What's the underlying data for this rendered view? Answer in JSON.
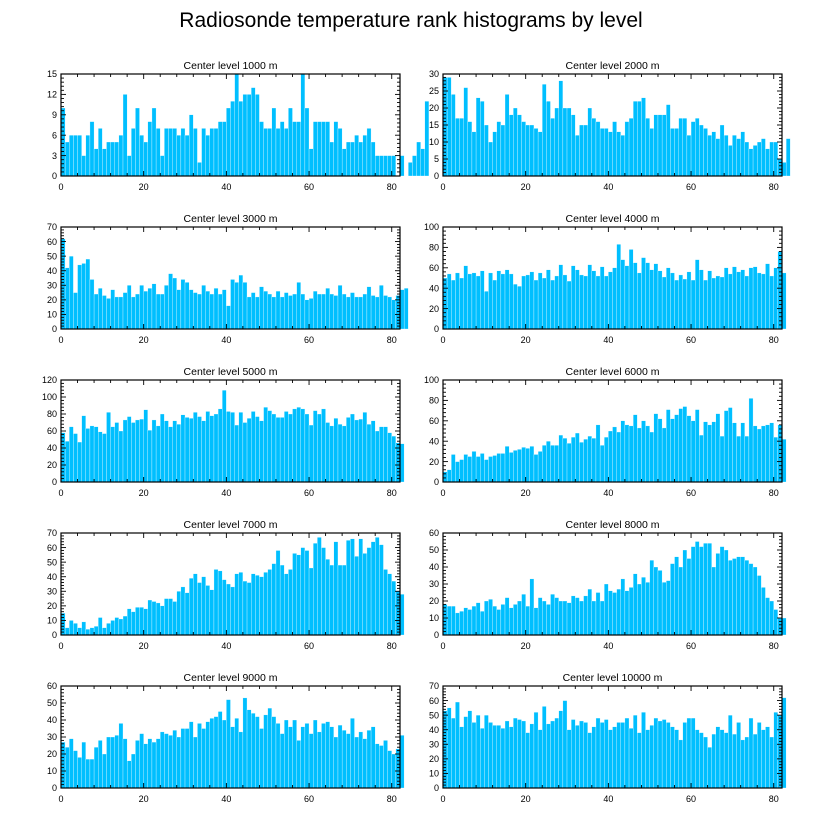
{
  "figure": {
    "title": "Radiosonde temperature rank histograms by level"
  },
  "colors": {
    "bar": "#00bfff",
    "axes": "#000000",
    "background": "#ffffff"
  },
  "chart_data": [
    {
      "type": "bar",
      "title": "Center level 1000 m",
      "xlim": [
        0,
        82
      ],
      "xticks": [
        0,
        20,
        40,
        60,
        80
      ],
      "ylim": [
        0,
        15
      ],
      "yticks": [
        0,
        3,
        6,
        9,
        12,
        15
      ],
      "values": [
        10,
        5,
        6,
        6,
        6,
        3,
        6,
        8,
        4,
        7,
        4,
        5,
        5,
        5,
        6,
        12,
        3,
        7,
        10,
        6,
        5,
        8,
        10,
        7,
        3,
        7,
        7,
        7,
        6,
        7,
        6,
        9,
        7,
        2,
        7,
        6,
        7,
        7,
        8,
        8,
        10,
        11,
        15,
        11,
        12,
        12,
        13,
        12,
        8,
        7,
        7,
        10,
        7,
        8,
        7,
        10,
        8,
        8,
        15,
        10,
        4,
        8,
        8,
        8,
        8,
        5,
        8,
        7,
        4,
        5,
        5,
        6,
        5,
        6,
        7,
        5,
        3,
        3,
        3,
        3,
        3,
        0,
        3,
        0,
        2,
        3,
        5,
        4,
        11
      ]
    },
    {
      "type": "bar",
      "title": "Center level 2000 m",
      "xlim": [
        0,
        82
      ],
      "xticks": [
        0,
        20,
        40,
        60,
        80
      ],
      "ylim": [
        0,
        30
      ],
      "yticks": [
        0,
        5,
        10,
        15,
        20,
        25,
        30
      ],
      "values": [
        29,
        29,
        24,
        17,
        17,
        26,
        16,
        13,
        23,
        22,
        15,
        10,
        13,
        16,
        15,
        24,
        18,
        20,
        18,
        16,
        15,
        15,
        14,
        13,
        27,
        22,
        17,
        20,
        28,
        20,
        20,
        18,
        12,
        15,
        15,
        20,
        17,
        16,
        14,
        14,
        13,
        16,
        13,
        12,
        16,
        17,
        22,
        22,
        23,
        17,
        14,
        18,
        18,
        18,
        21,
        14,
        14,
        17,
        17,
        12,
        16,
        17,
        15,
        14,
        12,
        13,
        11,
        15,
        12,
        9,
        12,
        11,
        13,
        10,
        8,
        9,
        10,
        11,
        8,
        10,
        10,
        5,
        4,
        11
      ]
    },
    {
      "type": "bar",
      "title": "Center level 3000 m",
      "xlim": [
        0,
        82
      ],
      "xticks": [
        0,
        20,
        40,
        60,
        80
      ],
      "ylim": [
        0,
        70
      ],
      "yticks": [
        0,
        10,
        20,
        30,
        40,
        50,
        60,
        70
      ],
      "values": [
        62,
        42,
        50,
        25,
        44,
        45,
        48,
        34,
        24,
        28,
        23,
        21,
        27,
        22,
        22,
        25,
        30,
        22,
        24,
        30,
        26,
        28,
        31,
        24,
        24,
        30,
        38,
        35,
        27,
        34,
        32,
        27,
        25,
        24,
        30,
        26,
        24,
        28,
        24,
        27,
        16,
        34,
        32,
        37,
        32,
        22,
        25,
        22,
        29,
        26,
        24,
        22,
        26,
        22,
        25,
        23,
        24,
        32,
        24,
        20,
        21,
        26,
        24,
        24,
        28,
        24,
        23,
        30,
        24,
        22,
        25,
        22,
        22,
        24,
        29,
        23,
        22,
        30,
        23,
        22,
        20,
        23,
        27,
        28
      ]
    },
    {
      "type": "bar",
      "title": "Center level 4000 m",
      "xlim": [
        0,
        82
      ],
      "xticks": [
        0,
        20,
        40,
        60,
        80
      ],
      "ylim": [
        0,
        100
      ],
      "yticks": [
        0,
        20,
        40,
        60,
        80,
        100
      ],
      "values": [
        50,
        54,
        48,
        55,
        50,
        62,
        54,
        55,
        52,
        57,
        37,
        55,
        48,
        57,
        54,
        58,
        54,
        44,
        42,
        52,
        53,
        56,
        48,
        55,
        50,
        58,
        48,
        52,
        63,
        53,
        47,
        62,
        58,
        53,
        52,
        63,
        57,
        52,
        61,
        52,
        56,
        60,
        83,
        68,
        62,
        78,
        65,
        55,
        70,
        65,
        58,
        64,
        57,
        51,
        60,
        55,
        48,
        53,
        49,
        56,
        48,
        68,
        58,
        48,
        57,
        50,
        52,
        51,
        60,
        54,
        61,
        56,
        58,
        52,
        60,
        61,
        55,
        54,
        64,
        52,
        60,
        76,
        55
      ]
    },
    {
      "type": "bar",
      "title": "Center level 5000 m",
      "xlim": [
        0,
        82
      ],
      "xticks": [
        0,
        20,
        40,
        60,
        80
      ],
      "ylim": [
        0,
        120
      ],
      "yticks": [
        0,
        20,
        40,
        60,
        80,
        100,
        120
      ],
      "values": [
        58,
        48,
        65,
        57,
        47,
        78,
        63,
        66,
        65,
        59,
        57,
        82,
        65,
        70,
        60,
        73,
        77,
        70,
        73,
        74,
        85,
        61,
        73,
        66,
        80,
        72,
        65,
        72,
        68,
        79,
        76,
        75,
        82,
        77,
        72,
        83,
        78,
        80,
        86,
        108,
        83,
        82,
        67,
        82,
        70,
        75,
        83,
        77,
        72,
        88,
        84,
        80,
        76,
        76,
        83,
        80,
        86,
        88,
        86,
        80,
        67,
        84,
        80,
        86,
        70,
        66,
        75,
        68,
        66,
        76,
        80,
        73,
        74,
        82,
        68,
        72,
        60,
        65,
        65,
        58,
        54,
        46,
        45
      ]
    },
    {
      "type": "bar",
      "title": "Center level 6000 m",
      "xlim": [
        0,
        82
      ],
      "xticks": [
        0,
        20,
        40,
        60,
        80
      ],
      "ylim": [
        0,
        100
      ],
      "yticks": [
        0,
        20,
        40,
        60,
        80,
        100
      ],
      "values": [
        10,
        12,
        27,
        20,
        22,
        27,
        25,
        30,
        25,
        28,
        22,
        25,
        26,
        28,
        28,
        35,
        29,
        31,
        32,
        34,
        33,
        35,
        27,
        30,
        36,
        40,
        36,
        36,
        46,
        43,
        38,
        44,
        48,
        39,
        42,
        45,
        43,
        56,
        36,
        44,
        50,
        54,
        49,
        60,
        56,
        55,
        66,
        53,
        60,
        55,
        49,
        67,
        62,
        53,
        71,
        62,
        66,
        72,
        74,
        65,
        60,
        71,
        46,
        59,
        56,
        59,
        67,
        45,
        70,
        73,
        58,
        45,
        58,
        45,
        82,
        55,
        52,
        55,
        56,
        58,
        44,
        56,
        42
      ]
    },
    {
      "type": "bar",
      "title": "Center level 7000 m",
      "xlim": [
        0,
        82
      ],
      "xticks": [
        0,
        20,
        40,
        60,
        80
      ],
      "ylim": [
        0,
        70
      ],
      "yticks": [
        0,
        10,
        20,
        30,
        40,
        50,
        60,
        70
      ],
      "values": [
        15,
        5,
        10,
        8,
        5,
        9,
        4,
        5,
        6,
        12,
        5,
        8,
        10,
        12,
        11,
        13,
        18,
        16,
        19,
        19,
        18,
        24,
        23,
        22,
        20,
        25,
        25,
        23,
        30,
        33,
        29,
        39,
        42,
        36,
        40,
        34,
        31,
        45,
        44,
        38,
        35,
        33,
        42,
        43,
        37,
        36,
        42,
        41,
        40,
        43,
        45,
        49,
        58,
        48,
        42,
        45,
        56,
        55,
        60,
        58,
        46,
        63,
        67,
        60,
        52,
        48,
        64,
        48,
        48,
        65,
        66,
        54,
        66,
        56,
        60,
        64,
        67,
        62,
        45,
        42,
        37,
        30,
        28
      ]
    },
    {
      "type": "bar",
      "title": "Center level 8000 m",
      "xlim": [
        0,
        82
      ],
      "xticks": [
        0,
        20,
        40,
        60,
        80
      ],
      "ylim": [
        0,
        60
      ],
      "yticks": [
        0,
        10,
        20,
        30,
        40,
        50,
        60
      ],
      "values": [
        18,
        17,
        17,
        13,
        14,
        16,
        15,
        17,
        19,
        14,
        20,
        21,
        17,
        15,
        18,
        22,
        16,
        18,
        20,
        24,
        17,
        33,
        16,
        22,
        20,
        18,
        24,
        22,
        20,
        20,
        19,
        23,
        22,
        20,
        23,
        27,
        20,
        25,
        20,
        30,
        26,
        25,
        27,
        33,
        26,
        28,
        36,
        30,
        34,
        31,
        44,
        40,
        38,
        31,
        32,
        42,
        46,
        40,
        50,
        45,
        52,
        55,
        52,
        54,
        54,
        40,
        48,
        52,
        50,
        44,
        45,
        46,
        46,
        44,
        42,
        40,
        35,
        28,
        22,
        20,
        15,
        10,
        10
      ]
    },
    {
      "type": "bar",
      "title": "Center level 9000 m",
      "xlim": [
        0,
        82
      ],
      "xticks": [
        0,
        20,
        40,
        60,
        80
      ],
      "ylim": [
        0,
        60
      ],
      "yticks": [
        0,
        10,
        20,
        30,
        40,
        50,
        60
      ],
      "values": [
        27,
        24,
        29,
        22,
        18,
        27,
        17,
        17,
        24,
        28,
        20,
        30,
        30,
        31,
        38,
        29,
        16,
        20,
        28,
        32,
        26,
        29,
        27,
        29,
        33,
        32,
        31,
        34,
        30,
        35,
        35,
        39,
        30,
        38,
        35,
        39,
        41,
        42,
        45,
        40,
        52,
        36,
        41,
        33,
        53,
        46,
        44,
        42,
        35,
        43,
        47,
        42,
        38,
        32,
        40,
        36,
        40,
        28,
        36,
        38,
        32,
        40,
        33,
        38,
        39,
        36,
        30,
        37,
        34,
        32,
        41,
        30,
        33,
        29,
        34,
        36,
        26,
        25,
        28,
        22,
        20,
        23,
        31
      ]
    },
    {
      "type": "bar",
      "title": "Center level 10000 m",
      "xlim": [
        0,
        82
      ],
      "xticks": [
        0,
        20,
        40,
        60,
        80
      ],
      "ylim": [
        0,
        70
      ],
      "yticks": [
        0,
        10,
        20,
        30,
        40,
        50,
        60,
        70
      ],
      "values": [
        53,
        55,
        48,
        59,
        42,
        49,
        53,
        45,
        50,
        41,
        50,
        45,
        43,
        43,
        41,
        46,
        42,
        48,
        47,
        46,
        38,
        44,
        52,
        40,
        56,
        44,
        46,
        48,
        53,
        60,
        40,
        47,
        43,
        46,
        45,
        38,
        42,
        48,
        45,
        47,
        40,
        42,
        45,
        45,
        48,
        41,
        50,
        38,
        52,
        40,
        43,
        48,
        46,
        47,
        45,
        42,
        40,
        33,
        45,
        48,
        48,
        40,
        38,
        35,
        28,
        37,
        42,
        40,
        38,
        50,
        37,
        45,
        33,
        35,
        48,
        37,
        45,
        40,
        42,
        35,
        52,
        50,
        62
      ]
    }
  ]
}
